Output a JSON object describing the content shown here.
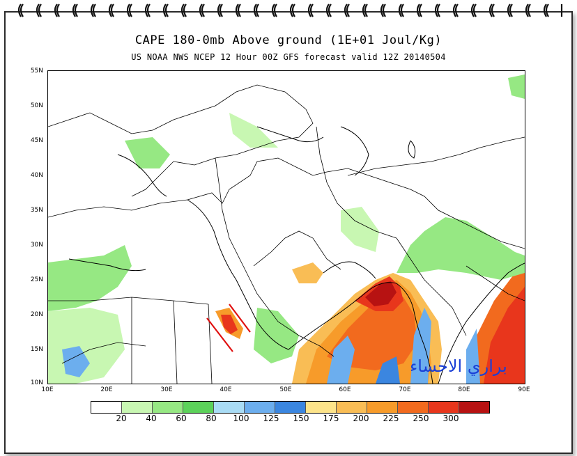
{
  "title": "CAPE 180-0mb Above ground (1E+01 Joul/Kg)",
  "subtitle": "US NOAA NWS NCEP 12 Hour 00Z GFS forecast valid 12Z 20140504",
  "watermark": "براري الاحساء",
  "lat_labels": [
    "55N",
    "50N",
    "45N",
    "40N",
    "35N",
    "30N",
    "25N",
    "20N",
    "15N",
    "10N"
  ],
  "lon_labels": [
    "10E",
    "20E",
    "30E",
    "40E",
    "50E",
    "60E",
    "70E",
    "80E",
    "90E"
  ],
  "legend": {
    "colors": [
      "#ffffff",
      "#c8f7b2",
      "#96e883",
      "#5cd25a",
      "#a9dcf5",
      "#6caeee",
      "#3b86e0",
      "#fde48a",
      "#f9bd55",
      "#f79b2a",
      "#f26a1e",
      "#e8361c",
      "#b71212"
    ],
    "labels": [
      "20",
      "40",
      "60",
      "80",
      "100",
      "125",
      "150",
      "175",
      "200",
      "225",
      "250",
      "300"
    ]
  },
  "colors": {
    "lines": "#000000",
    "annotation": "#e01010",
    "watermark": "#1a3fd6"
  }
}
